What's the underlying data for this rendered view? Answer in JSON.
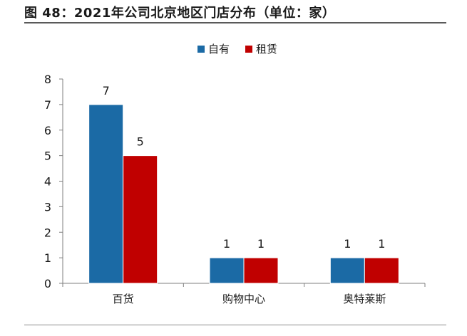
{
  "figure": {
    "title": "图 48：2021年公司北京地区门店分布（单位：家）",
    "source": ""
  },
  "chart_data": {
    "type": "bar",
    "categories": [
      "百货",
      "购物中心",
      "奥特莱斯"
    ],
    "series": [
      {
        "name": "自有",
        "values": [
          7,
          1,
          1
        ],
        "color": "#1b6aa5"
      },
      {
        "name": "租赁",
        "values": [
          5,
          1,
          1
        ],
        "color": "#c00000"
      }
    ],
    "ylim": [
      0,
      8
    ],
    "yticks": [
      0,
      1,
      2,
      3,
      4,
      5,
      6,
      7,
      8
    ],
    "legend_position": "top-center",
    "grid": false,
    "data_labels": true
  }
}
